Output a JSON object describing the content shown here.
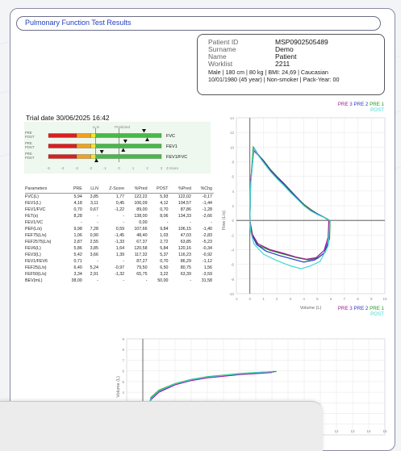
{
  "report_title": "Pulmonary Function Test Results",
  "patient": {
    "fields": [
      {
        "label": "Patient ID",
        "value": "MSP0902505489"
      },
      {
        "label": "Surname",
        "value": "Demo"
      },
      {
        "label": "Name",
        "value": "Patient"
      },
      {
        "label": "Worklist",
        "value": "2211"
      }
    ],
    "line1": "Male | 180 cm | 80 kg | BMI: 24,69 | Caucasian",
    "line2": "10/01/1980 (45 year) | Non-smoker | Pack-Year: 00"
  },
  "legend_top": {
    "pre3": "PRE 3",
    "pre2": "PRE 2",
    "pre1": "PRE 1",
    "post": "POST"
  },
  "legend_bottom": {
    "pre3": "PRE 3",
    "pre2": "PRE 2",
    "pre1": "PRE 1",
    "post": "POST"
  },
  "colors": {
    "pre3": "#a0159b",
    "pre2": "#2838c8",
    "pre1": "#18a018",
    "post": "#3fd9cf",
    "accent": "#2340c0"
  },
  "trial_date": "Trial date 30/06/2025 16:42",
  "zscore": {
    "lln_label": "LLN",
    "predicted_label": "Predicted",
    "axis_ticks": [
      "-5",
      "-4",
      "-3",
      "-2",
      "-1",
      "0",
      "1",
      "2",
      "3"
    ],
    "axis_unit": "Z-Score",
    "rows": [
      {
        "pre_label": "PRE",
        "post_label": "POST",
        "name": "FVC",
        "pre_z": 1.77,
        "post_z": 2.0
      },
      {
        "pre_label": "PRE",
        "post_label": "POST",
        "name": "FEV1",
        "pre_z": 0.45,
        "post_z": 0.3
      },
      {
        "pre_label": "PRE",
        "post_label": "POST",
        "name": "FEV1/FVC",
        "pre_z": -1.22,
        "post_z": -1.6
      }
    ]
  },
  "table": {
    "headers": [
      "Parameters",
      "PRE",
      "LLN",
      "Z-Score",
      "%Pred",
      "POST",
      "%Pred",
      "%Chg"
    ],
    "rows": [
      [
        "FVC(L)",
        "5,94",
        "3,85",
        "1,77",
        "122,22",
        "5,93",
        "122,02",
        "-0,17"
      ],
      [
        "FEV1(L)",
        "4,18",
        "3,11",
        "0,45",
        "106,09",
        "4,12",
        "104,57",
        "-1,44"
      ],
      [
        "FEV1/FVC",
        "0,70",
        "0,67",
        "-1,22",
        "89,00",
        "0,70",
        "87,86",
        "-1,28"
      ],
      [
        "FET(s)",
        "8,28",
        "-",
        "-",
        "138,00",
        "8,06",
        "134,33",
        "-2,66"
      ],
      [
        "FEV1/VC",
        "-",
        "-",
        "-",
        "0,00",
        "-",
        "-",
        "-"
      ],
      [
        "PEF(L/s)",
        "9,98",
        "7,28",
        "0,59",
        "107,66",
        "9,84",
        "106,15",
        "-1,40"
      ],
      [
        "FEF75(L/s)",
        "1,06",
        "0,90",
        "-1,45",
        "48,40",
        "1,03",
        "47,03",
        "-2,83"
      ],
      [
        "FEF2575(L/s)",
        "2,87",
        "2,55",
        "-1,33",
        "67,37",
        "2,72",
        "63,85",
        "-5,23"
      ],
      [
        "FEV6(L)",
        "5,86",
        "3,85",
        "1,64",
        "120,58",
        "5,84",
        "120,16",
        "-0,34"
      ],
      [
        "FEV3(L)",
        "5,42",
        "3,66",
        "1,39",
        "117,32",
        "5,37",
        "116,23",
        "-0,92"
      ],
      [
        "FEV1/FEV6",
        "0,71",
        "-",
        "-",
        "87,27",
        "0,70",
        "86,29",
        "-1,12"
      ],
      [
        "FEF25(L/s)",
        "6,40",
        "5,24",
        "-0,97",
        "79,50",
        "6,50",
        "80,75",
        "1,56"
      ],
      [
        "FEF50(L/s)",
        "3,34",
        "2,91",
        "-1,32",
        "65,75",
        "3,22",
        "63,39",
        "-3,59"
      ],
      [
        "BEV(mL)",
        "38,00",
        "-",
        "-",
        "-",
        "50,00",
        "-",
        "31,58"
      ]
    ]
  },
  "chart_data": [
    {
      "type": "line",
      "xlabel": "Volume (L)",
      "ylabel": "Flow (L/s)",
      "xlim": [
        -1,
        10
      ],
      "ylim": [
        -10,
        14
      ],
      "x_ticks": [
        "-1",
        "0",
        "1",
        "2",
        "3",
        "4",
        "5",
        "6",
        "7",
        "8",
        "9",
        "10"
      ],
      "y_ticks": [
        "14",
        "12",
        "10",
        "8",
        "6",
        "4",
        "2",
        "0",
        "-2",
        "-4",
        "-6",
        "-8",
        "-10"
      ],
      "series": [
        {
          "name": "PRE 1",
          "points": [
            [
              0,
              0
            ],
            [
              0.05,
              5
            ],
            [
              0.25,
              9.98
            ],
            [
              0.5,
              9.2
            ],
            [
              1,
              8.2
            ],
            [
              1.5,
              7
            ],
            [
              2,
              6
            ],
            [
              2.5,
              5.1
            ],
            [
              3,
              4.1
            ],
            [
              3.5,
              3.1
            ],
            [
              4,
              2.2
            ],
            [
              4.5,
              1.5
            ],
            [
              5,
              0.9
            ],
            [
              5.5,
              0.45
            ],
            [
              5.94,
              0
            ],
            [
              5.9,
              -2.5
            ],
            [
              5.6,
              -4.3
            ],
            [
              5,
              -5.2
            ],
            [
              4.3,
              -5.4
            ],
            [
              3.5,
              -5.1
            ],
            [
              2.5,
              -4.6
            ],
            [
              1.5,
              -4.1
            ],
            [
              0.6,
              -3.4
            ],
            [
              0.2,
              -2
            ],
            [
              0,
              0
            ]
          ]
        },
        {
          "name": "PRE 2",
          "points": [
            [
              0,
              0
            ],
            [
              0.05,
              5
            ],
            [
              0.3,
              9.9
            ],
            [
              0.6,
              9
            ],
            [
              1,
              8.1
            ],
            [
              1.5,
              6.9
            ],
            [
              2,
              5.9
            ],
            [
              2.5,
              5
            ],
            [
              3,
              4
            ],
            [
              3.5,
              3.1
            ],
            [
              4,
              2.1
            ],
            [
              4.5,
              1.4
            ],
            [
              5,
              0.9
            ],
            [
              5.5,
              0.4
            ],
            [
              5.9,
              0
            ],
            [
              5.85,
              -2.6
            ],
            [
              5.5,
              -4.5
            ],
            [
              4.8,
              -5.4
            ],
            [
              4,
              -5.7
            ],
            [
              3.2,
              -5.3
            ],
            [
              2.2,
              -4.8
            ],
            [
              1.2,
              -4.2
            ],
            [
              0.5,
              -3.3
            ],
            [
              0.1,
              -1.8
            ],
            [
              0,
              0
            ]
          ]
        },
        {
          "name": "PRE 3",
          "points": [
            [
              0,
              0
            ],
            [
              0.05,
              5.5
            ],
            [
              0.3,
              9.5
            ],
            [
              0.6,
              8.9
            ],
            [
              1,
              8
            ],
            [
              1.5,
              6.8
            ],
            [
              2,
              5.8
            ],
            [
              2.5,
              4.9
            ],
            [
              3,
              3.9
            ],
            [
              3.5,
              3
            ],
            [
              4,
              2.1
            ],
            [
              4.5,
              1.4
            ],
            [
              5,
              0.8
            ],
            [
              5.5,
              0.4
            ],
            [
              5.85,
              0
            ],
            [
              5.8,
              -2.3
            ],
            [
              5.5,
              -4.1
            ],
            [
              4.9,
              -5.1
            ],
            [
              4.2,
              -5.3
            ],
            [
              3.4,
              -5
            ],
            [
              2.5,
              -4.5
            ],
            [
              1.5,
              -4
            ],
            [
              0.6,
              -3.2
            ],
            [
              0.15,
              -1.8
            ],
            [
              0,
              0
            ]
          ]
        },
        {
          "name": "POST",
          "points": [
            [
              0,
              0
            ],
            [
              0.05,
              4.8
            ],
            [
              0.3,
              9.84
            ],
            [
              0.6,
              8.9
            ],
            [
              1,
              7.9
            ],
            [
              1.5,
              6.7
            ],
            [
              2,
              5.7
            ],
            [
              2.5,
              4.8
            ],
            [
              3,
              3.8
            ],
            [
              3.5,
              2.9
            ],
            [
              4,
              2
            ],
            [
              4.5,
              1.3
            ],
            [
              5,
              0.8
            ],
            [
              5.5,
              0.4
            ],
            [
              5.93,
              0
            ],
            [
              5.8,
              -3.5
            ],
            [
              5.2,
              -5.6
            ],
            [
              4.5,
              -6.2
            ],
            [
              3.8,
              -6.6
            ],
            [
              3,
              -6.2
            ],
            [
              2,
              -5.5
            ],
            [
              1,
              -4.6
            ],
            [
              0.3,
              -3.2
            ],
            [
              0.05,
              -1.5
            ],
            [
              0,
              0
            ]
          ]
        }
      ]
    },
    {
      "type": "line",
      "xlabel": "",
      "ylabel": "Volume (L)",
      "xlim": [
        -1,
        15
      ],
      "ylim": [
        0,
        9
      ],
      "x_ticks": [
        "12",
        "13",
        "14",
        "15"
      ],
      "y_ticks": [
        "9",
        "8",
        "7",
        "6",
        "5",
        "4"
      ],
      "series": [
        {
          "name": "PRE 1",
          "points": [
            [
              0,
              0
            ],
            [
              0.5,
              3.5
            ],
            [
              1,
              4.18
            ],
            [
              2,
              4.8
            ],
            [
              3,
              5.2
            ],
            [
              4,
              5.45
            ],
            [
              5,
              5.6
            ],
            [
              6,
              5.75
            ],
            [
              7,
              5.85
            ],
            [
              8.28,
              5.94
            ]
          ]
        },
        {
          "name": "PRE 2",
          "points": [
            [
              0,
              0
            ],
            [
              0.5,
              3.4
            ],
            [
              1,
              4.1
            ],
            [
              2,
              4.75
            ],
            [
              3,
              5.15
            ],
            [
              4,
              5.4
            ],
            [
              5,
              5.55
            ],
            [
              6,
              5.7
            ],
            [
              7,
              5.8
            ],
            [
              8.1,
              5.9
            ]
          ]
        },
        {
          "name": "PRE 3",
          "points": [
            [
              0,
              0
            ],
            [
              0.5,
              3.3
            ],
            [
              1,
              4
            ],
            [
              2,
              4.7
            ],
            [
              3,
              5.1
            ],
            [
              4,
              5.35
            ],
            [
              5,
              5.5
            ],
            [
              6,
              5.65
            ],
            [
              7,
              5.75
            ],
            [
              8,
              5.85
            ]
          ]
        },
        {
          "name": "POST",
          "points": [
            [
              0,
              0
            ],
            [
              0.5,
              3.4
            ],
            [
              1,
              4.12
            ],
            [
              2,
              4.78
            ],
            [
              3,
              5.18
            ],
            [
              4,
              5.42
            ],
            [
              5,
              5.58
            ],
            [
              6,
              5.72
            ],
            [
              7,
              5.83
            ],
            [
              8.06,
              5.93
            ]
          ]
        }
      ]
    }
  ]
}
